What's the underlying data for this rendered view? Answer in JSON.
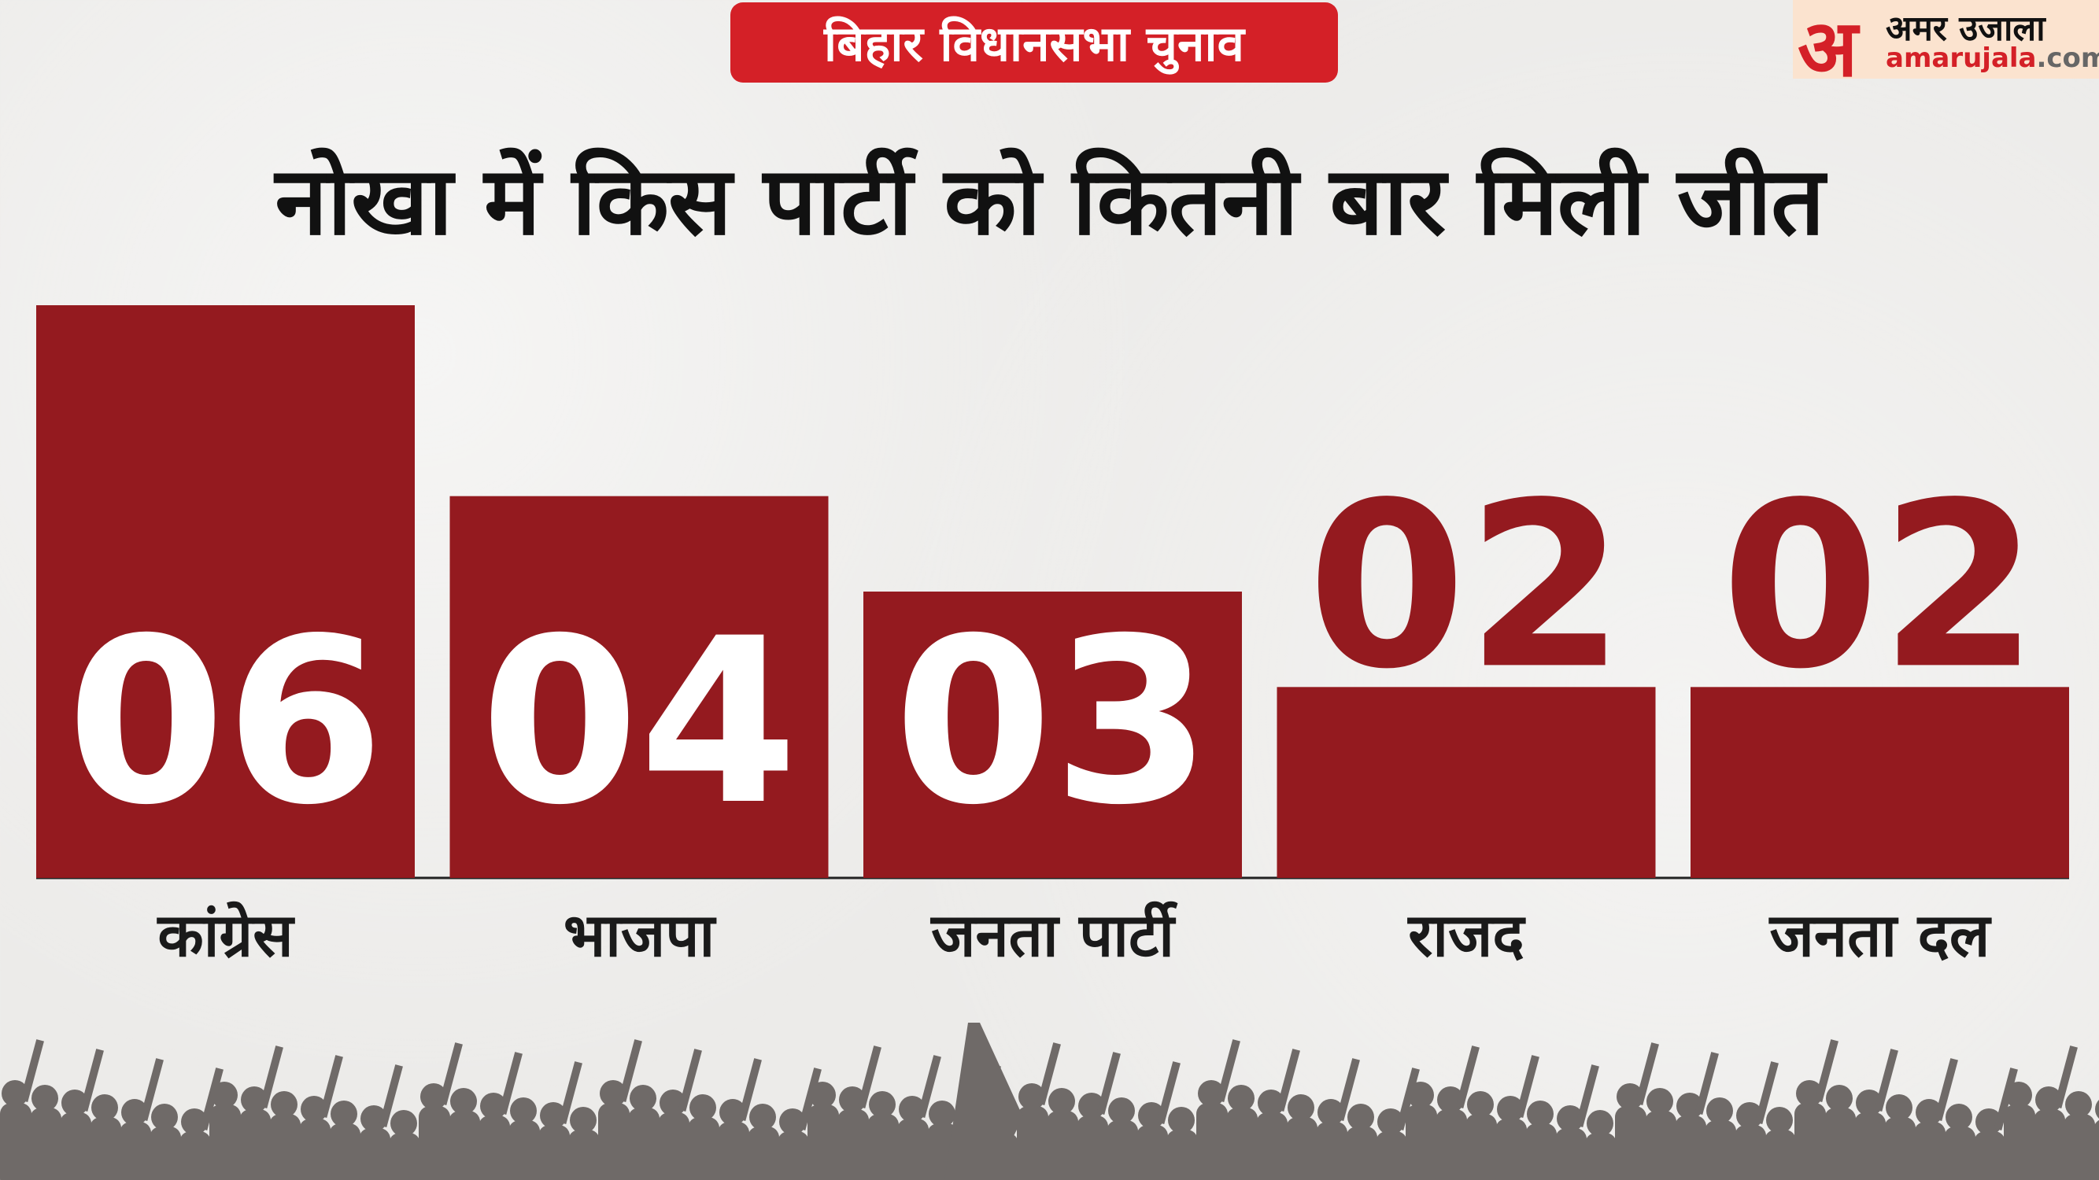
{
  "header": {
    "badge": "बिहार विधानसभा चुनाव",
    "logo_text": "अमर उजाला",
    "logo_site": "amarujala",
    "logo_domain": ".com",
    "logo_mark": "अ"
  },
  "colors": {
    "bar": "#941a1f",
    "badge": "#d42027",
    "value_inside": "#ffffff",
    "value_outside": "#941a1f"
  },
  "chart_data": {
    "type": "bar",
    "title": "नोखा में किस पार्टी को कितनी बार मिली जीत",
    "categories": [
      "कांग्रेस",
      "भाजपा",
      "जनता पार्टी",
      "राजद",
      "जनता दल"
    ],
    "values": [
      6,
      4,
      3,
      2,
      2
    ],
    "data_labels": [
      "06",
      "04",
      "03",
      "02",
      "02"
    ],
    "ylim": [
      0,
      6
    ],
    "grid": false,
    "legend": "none"
  }
}
